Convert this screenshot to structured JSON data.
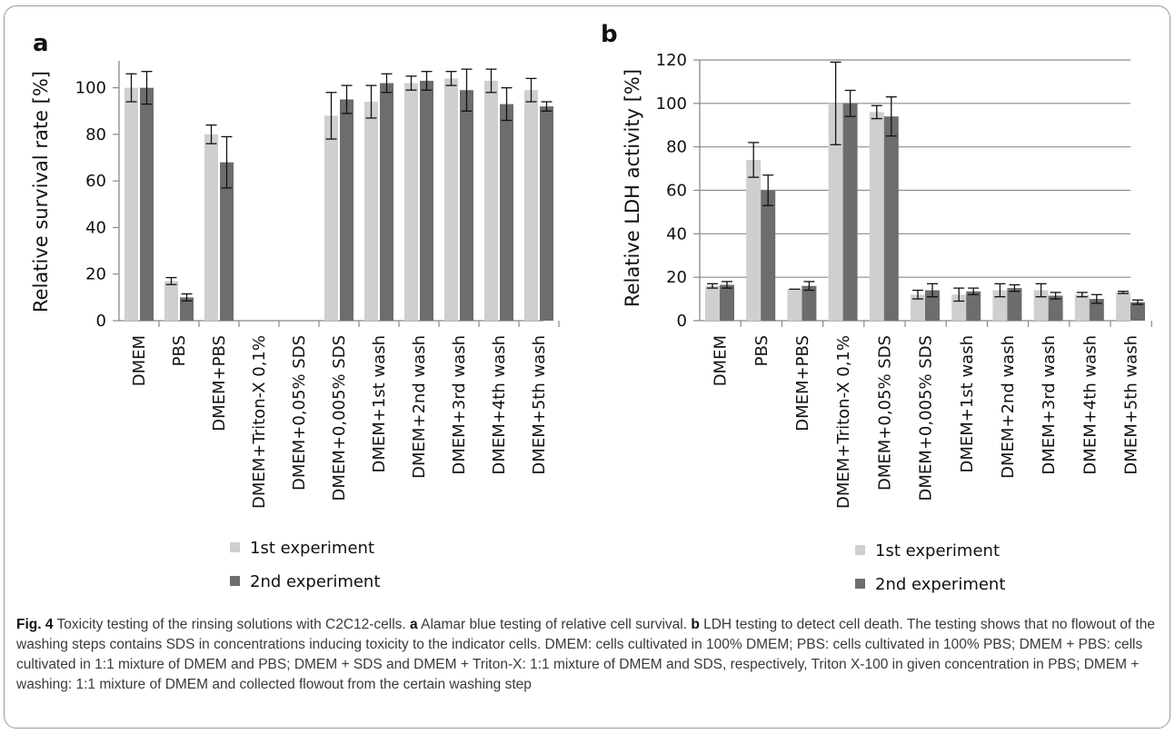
{
  "chart_data": [
    {
      "type": "bar",
      "panel_label": "a",
      "ylabel": "Relative survival rate [%]",
      "ylim": [
        0,
        110
      ],
      "yticks": [
        0,
        20,
        40,
        60,
        80,
        100
      ],
      "grid": false,
      "categories": [
        "DMEM",
        "PBS",
        "DMEM+PBS",
        "DMEM+Triton-X 0,1%",
        "DMEM+0,05% SDS",
        "DMEM+0,005% SDS",
        "DMEM+1st wash",
        "DMEM+2nd wash",
        "DMEM+3rd wash",
        "DMEM+4th wash",
        "DMEM+5th wash"
      ],
      "series": [
        {
          "name": "1st experiment",
          "color": "#cfcfcf",
          "values": [
            100,
            17,
            80,
            0,
            0,
            88,
            94,
            102,
            104,
            103,
            99
          ],
          "errors": [
            6,
            1.5,
            4,
            0,
            0,
            10,
            7,
            3,
            3,
            5,
            5
          ]
        },
        {
          "name": "2nd experiment",
          "color": "#6d6d6d",
          "values": [
            100,
            10,
            68,
            0,
            0,
            95,
            102,
            103,
            99,
            93,
            92
          ],
          "errors": [
            7,
            1.5,
            11,
            0,
            0,
            6,
            4,
            4,
            9,
            7,
            2
          ]
        }
      ],
      "legend_position": "bottom"
    },
    {
      "type": "bar",
      "panel_label": "b",
      "ylabel": "Relative LDH activity [%]",
      "ylim": [
        0,
        120
      ],
      "yticks": [
        0,
        20,
        40,
        60,
        80,
        100,
        120
      ],
      "grid": true,
      "categories": [
        "DMEM",
        "PBS",
        "DMEM+PBS",
        "DMEM+Triton-X 0,1%",
        "DMEM+0,05% SDS",
        "DMEM+0,005% SDS",
        "DMEM+1st wash",
        "DMEM+2nd wash",
        "DMEM+3rd wash",
        "DMEM+4th wash",
        "DMEM+5th wash"
      ],
      "series": [
        {
          "name": "1st experiment",
          "color": "#cfcfcf",
          "values": [
            16,
            74,
            14.5,
            100,
            96,
            12,
            12,
            14,
            14,
            12,
            13
          ],
          "errors": [
            1,
            8,
            0,
            19,
            3,
            2,
            3,
            3,
            3,
            1,
            0.5
          ]
        },
        {
          "name": "2nd experiment",
          "color": "#6d6d6d",
          "values": [
            16.5,
            60,
            16,
            100,
            94,
            14,
            13.5,
            15,
            11.5,
            10,
            8.5
          ],
          "errors": [
            1.5,
            7,
            2,
            6,
            9,
            3,
            1.5,
            1.5,
            1.5,
            2,
            1
          ]
        }
      ],
      "legend_position": "bottom"
    }
  ],
  "caption": {
    "fig_label": "Fig. 4",
    "parts": [
      {
        "text": " Toxicity testing of the rinsing solutions with C2C12-cells. ",
        "bold": false
      },
      {
        "text": "a",
        "bold": true
      },
      {
        "text": " Alamar blue testing of relative cell survival. ",
        "bold": false
      },
      {
        "text": "b",
        "bold": true
      },
      {
        "text": " LDH testing to detect cell death. The testing shows that no flowout of the washing steps contains SDS in concentrations inducing toxicity to the indicator cells. DMEM: cells cultivated in 100% DMEM; PBS: cells cultivated in 100% PBS; DMEM + PBS: cells cultivated in 1:1 mixture of DMEM and PBS; DMEM + SDS and DMEM + Triton-X: 1:1 mixture of DMEM and SDS, respectively, Triton X-100 in given concentration in PBS; DMEM + washing: 1:1 mixture of DMEM and collected flowout from the certain washing step",
        "bold": false
      }
    ]
  }
}
